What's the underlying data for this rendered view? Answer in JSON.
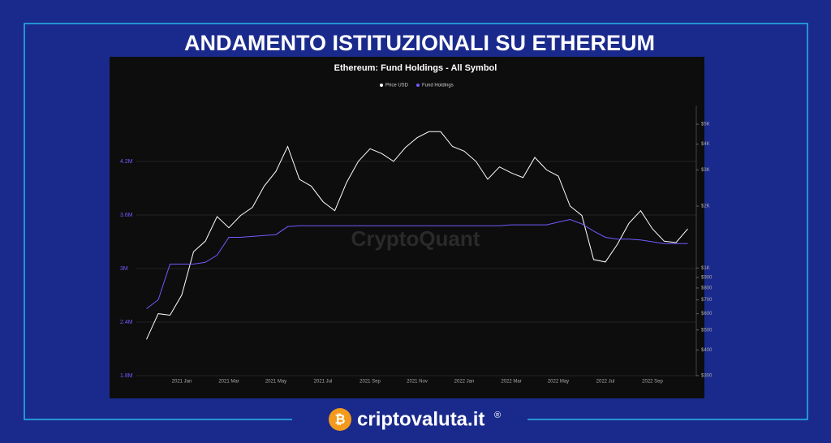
{
  "header": {
    "title": "ANDAMENTO ISTITUZIONALI SU ETHEREUM"
  },
  "footer": {
    "logo": "₿",
    "brand": "criptovaluta.it",
    "mark": "®"
  },
  "chart_data": {
    "type": "line",
    "title": "Ethereum: Fund Holdings - All Symbol",
    "watermark": "CryptoQuant",
    "categories": [
      null,
      null,
      null,
      "2021 Jan",
      null,
      null,
      null,
      "2021 Mar",
      null,
      null,
      null,
      "2021 May",
      null,
      null,
      null,
      "2021 Jul",
      null,
      null,
      null,
      "2021 Sep",
      null,
      null,
      null,
      "2021 Nov",
      null,
      null,
      null,
      "2022 Jan",
      null,
      null,
      null,
      "2022 Mar",
      null,
      null,
      null,
      "2022 May",
      null,
      null,
      null,
      "2022 Jul",
      null,
      null,
      null,
      "2022 Sep",
      null,
      null,
      null
    ],
    "series": [
      {
        "name": "Price USD",
        "color": "#ffffff",
        "axis": "y2",
        "values": [
          450,
          600,
          590,
          740,
          1200,
          1350,
          1780,
          1570,
          1800,
          1970,
          2500,
          2950,
          3900,
          2700,
          2500,
          2100,
          1900,
          2600,
          3300,
          3800,
          3600,
          3300,
          3850,
          4300,
          4600,
          4600,
          3900,
          3700,
          3300,
          2700,
          3100,
          2900,
          2750,
          3450,
          3000,
          2800,
          2000,
          1800,
          1100,
          1070,
          1300,
          1650,
          1900,
          1550,
          1350,
          1330,
          1550
        ]
      },
      {
        "name": "Fund Holdings",
        "color": "#6f5cff",
        "values": [
          2550000,
          2650000,
          3050000,
          3050000,
          3050000,
          3070000,
          3150000,
          3350000,
          3350000,
          3360000,
          3370000,
          3380000,
          3470000,
          3480000,
          3480000,
          3480000,
          3480000,
          3480000,
          3480000,
          3480000,
          3480000,
          3480000,
          3480000,
          3480000,
          3480000,
          3480000,
          3480000,
          3480000,
          3480000,
          3480000,
          3480000,
          3490000,
          3490000,
          3490000,
          3490000,
          3520000,
          3550000,
          3500000,
          3420000,
          3350000,
          3330000,
          3330000,
          3320000,
          3300000,
          3280000,
          3280000,
          3280000
        ]
      }
    ],
    "ylim": [
      1800000,
      4800000
    ],
    "yticks": [
      {
        "value": 1800000,
        "label": "1.8M"
      },
      {
        "value": 2400000,
        "label": "2.4M"
      },
      {
        "value": 3000000,
        "label": "3M"
      },
      {
        "value": 3600000,
        "label": "3.6M"
      },
      {
        "value": 4200000,
        "label": "4.2M"
      }
    ],
    "y2lim": [
      300,
      6000
    ],
    "y2scale": "log",
    "y2ticks": [
      {
        "value": 300,
        "label": "$300"
      },
      {
        "value": 400,
        "label": "$400"
      },
      {
        "value": 500,
        "label": "$500"
      },
      {
        "value": 600,
        "label": "$600"
      },
      {
        "value": 700,
        "label": "$700"
      },
      {
        "value": 800,
        "label": "$800"
      },
      {
        "value": 900,
        "label": "$900"
      },
      {
        "value": 1000,
        "label": "$1K"
      },
      {
        "value": 2000,
        "label": "$2K"
      },
      {
        "value": 3000,
        "label": "$3K"
      },
      {
        "value": 4000,
        "label": "$4K"
      },
      {
        "value": 5000,
        "label": "$5K"
      }
    ],
    "grid": true
  }
}
